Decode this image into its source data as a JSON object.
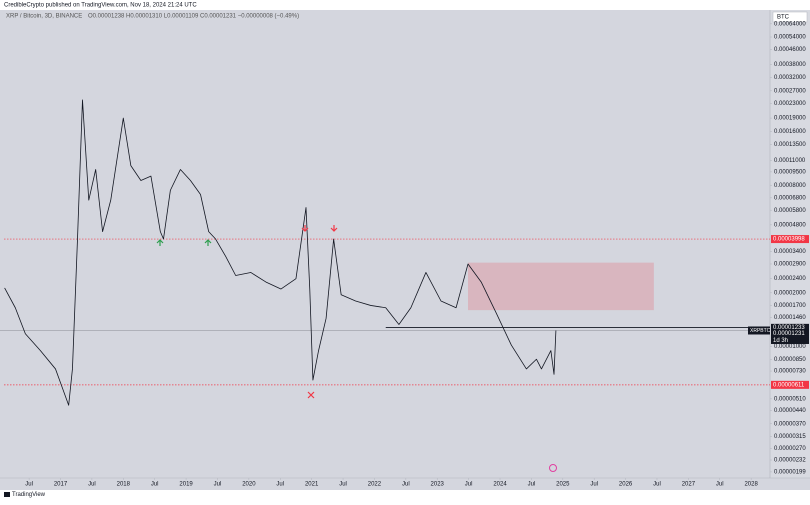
{
  "header": {
    "publisher": "CredibleCrypto published on TradingView.com, Nov 18, 2024 21:24 UTC",
    "symbol_line": "XRP / Bitcoin, 3D, BINANCE",
    "ohlc": "O0.00001238 H0.00001310 L0.00001109 C0.00001231 −0.00000008 (−0.49%)",
    "currency": "BTC",
    "footer": "TradingView"
  },
  "chart_data": {
    "type": "line",
    "log_scale": true,
    "grid": false,
    "xlim": [
      2016.1,
      2028.3
    ],
    "xticks": [
      {
        "value": 2016.5,
        "label": "Jul"
      },
      2017,
      {
        "value": 2017.5,
        "label": "Jul"
      },
      2018,
      {
        "value": 2018.5,
        "label": "Jul"
      },
      2019,
      {
        "value": 2019.5,
        "label": "Jul"
      },
      2020,
      {
        "value": 2020.5,
        "label": "Jul"
      },
      2021,
      {
        "value": 2021.5,
        "label": "Jul"
      },
      2022,
      {
        "value": 2022.5,
        "label": "Jul"
      },
      2023,
      {
        "value": 2023.5,
        "label": "Jul"
      },
      2024,
      {
        "value": 2024.5,
        "label": "Jul"
      },
      2025,
      {
        "value": 2025.5,
        "label": "Jul"
      },
      2026,
      {
        "value": 2026.5,
        "label": "Jul"
      },
      2027,
      {
        "value": 2027.5,
        "label": "Jul"
      },
      2028
    ],
    "ylim": [
      1.84e-06,
      0.00069
    ],
    "yticks": [
      {
        "value": 0.00064,
        "label": "0.00064000"
      },
      {
        "value": 0.00054,
        "label": "0.00054000"
      },
      {
        "value": 0.00046,
        "label": "0.00046000"
      },
      {
        "value": 0.00038,
        "label": "0.00038000"
      },
      {
        "value": 0.00032,
        "label": "0.00032000"
      },
      {
        "value": 0.00027,
        "label": "0.00027000"
      },
      {
        "value": 0.00023,
        "label": "0.00023000"
      },
      {
        "value": 0.00019,
        "label": "0.00019000"
      },
      {
        "value": 0.00016,
        "label": "0.00016000"
      },
      {
        "value": 0.000135,
        "label": "0.00013500"
      },
      {
        "value": 0.00011,
        "label": "0.00011000"
      },
      {
        "value": 9.5e-05,
        "label": "0.00009500"
      },
      {
        "value": 8e-05,
        "label": "0.00008000"
      },
      {
        "value": 6.8e-05,
        "label": "0.00006800"
      },
      {
        "value": 5.8e-05,
        "label": "0.00005800"
      },
      {
        "value": 4.8e-05,
        "label": "0.00004800"
      },
      {
        "value": 3.4e-05,
        "label": "0.00003400"
      },
      {
        "value": 2.9e-05,
        "label": "0.00002900"
      },
      {
        "value": 2.4e-05,
        "label": "0.00002400"
      },
      {
        "value": 2e-05,
        "label": "0.00002000"
      },
      {
        "value": 1.7e-05,
        "label": "0.00001700"
      },
      {
        "value": 1.46e-05,
        "label": "0.00001460"
      },
      {
        "value": 1e-05,
        "label": "0.00001000"
      },
      {
        "value": 8.5e-06,
        "label": "0.00000850"
      },
      {
        "value": 7.3e-06,
        "label": "0.00000730"
      },
      {
        "value": 5.1e-06,
        "label": "0.00000510"
      },
      {
        "value": 4.4e-06,
        "label": "0.00000440"
      },
      {
        "value": 3.7e-06,
        "label": "0.00000370"
      },
      {
        "value": 3.15e-06,
        "label": "0.00000315"
      },
      {
        "value": 2.7e-06,
        "label": "0.00000270"
      },
      {
        "value": 2.32e-06,
        "label": "0.00000232"
      },
      {
        "value": 1.99e-06,
        "label": "0.00000199"
      }
    ],
    "series": [
      {
        "name": "XRPBTC",
        "color": "#131722",
        "x": [
          2016.11,
          2016.28,
          2016.44,
          2016.68,
          2016.92,
          2017.13,
          2017.19,
          2017.27,
          2017.35,
          2017.45,
          2017.56,
          2017.67,
          2017.8,
          2018.0,
          2018.12,
          2018.28,
          2018.44,
          2018.59,
          2018.64,
          2018.75,
          2018.91,
          2019.07,
          2019.23,
          2019.36,
          2019.47,
          2019.63,
          2019.79,
          2020.03,
          2020.27,
          2020.51,
          2020.75,
          2020.91,
          2020.97,
          2021.02,
          2021.11,
          2021.23,
          2021.35,
          2021.47,
          2021.7,
          2021.94,
          2022.18,
          2022.39,
          2022.58,
          2022.82,
          2023.06,
          2023.3,
          2023.49,
          2023.7,
          2023.94,
          2024.18,
          2024.42,
          2024.58,
          2024.66,
          2024.81,
          2024.86,
          2024.89
        ],
        "values": [
          2.13e-05,
          1.65e-05,
          1.18e-05,
          9.5e-06,
          7.5e-06,
          4.7e-06,
          7.5e-06,
          3.95e-05,
          0.00024,
          6.6e-05,
          9.8e-05,
          4.4e-05,
          6.6e-05,
          0.00019,
          0.000103,
          8.5e-05,
          9e-05,
          4.4e-05,
          4e-05,
          7.5e-05,
          9.8e-05,
          8.5e-05,
          7.1e-05,
          4.4e-05,
          4e-05,
          3.2e-05,
          2.5e-05,
          2.6e-05,
          2.3e-05,
          2.1e-05,
          2.4e-05,
          6e-05,
          2.1e-05,
          6.5e-06,
          9.5e-06,
          1.44e-05,
          4e-05,
          1.95e-05,
          1.8e-05,
          1.7e-05,
          1.65e-05,
          1.33e-05,
          1.65e-05,
          2.6e-05,
          1.8e-05,
          1.65e-05,
          2.9e-05,
          2.3e-05,
          1.54e-05,
          1.02e-05,
          7.5e-06,
          8.5e-06,
          7.5e-06,
          9.5e-06,
          7e-06,
          1.231e-05
        ]
      }
    ],
    "levels": [
      3.998e-05,
      6.11e-06
    ],
    "support": {
      "x_start": 2022.18,
      "value": 1.28e-05
    },
    "zone": {
      "x": [
        2023.49,
        2026.45
      ],
      "y": [
        1.6e-05,
        2.95e-05
      ]
    },
    "price_tags": [
      1.233e-05,
      1.231e-05
    ],
    "countdown": "1d 3h"
  }
}
